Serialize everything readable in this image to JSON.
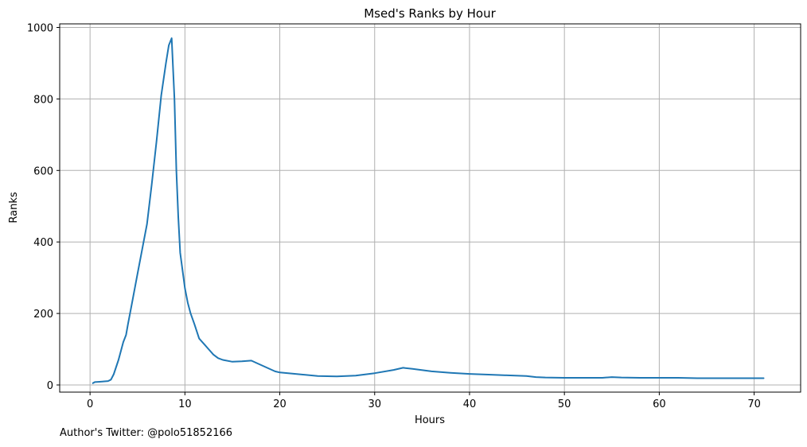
{
  "chart_data": {
    "type": "line",
    "title": "Msed's Ranks by Hour",
    "xlabel": "Hours",
    "ylabel": "Ranks",
    "xlim": [
      -3.2,
      74.9
    ],
    "ylim": [
      -20,
      1010
    ],
    "xticks": [
      0,
      10,
      20,
      30,
      40,
      50,
      60,
      70
    ],
    "yticks": [
      0,
      200,
      400,
      600,
      800,
      1000
    ],
    "grid": true,
    "color": "#1f77b4",
    "series": [
      {
        "x": [
          0.3,
          0.5,
          1.0,
          1.5,
          1.9,
          2.2,
          2.5,
          3.0,
          3.5,
          3.8,
          4.0,
          4.5,
          5.0,
          5.5,
          6.0,
          6.5,
          7.0,
          7.5,
          8.0,
          8.3,
          8.6,
          8.9,
          9.1,
          9.3,
          9.5,
          9.7,
          10.0,
          10.3,
          10.6,
          11.0,
          11.5,
          12.0,
          12.5,
          13.0,
          13.5,
          14.0,
          15.0,
          16.0,
          17.0,
          17.5,
          18.5,
          19.5,
          20.0,
          22.0,
          24.0,
          26.0,
          28.0,
          30.0,
          32.0,
          33.0,
          34.0,
          36.0,
          38.0,
          40.0,
          42.0,
          44.0,
          46.0,
          47.0,
          48.0,
          50.0,
          52.0,
          54.0,
          55.0,
          56.0,
          58.0,
          60.0,
          62.0,
          64.0,
          66.0,
          68.0,
          70.0,
          71.0
        ],
        "y": [
          5,
          8,
          9,
          10,
          11,
          15,
          30,
          70,
          120,
          140,
          170,
          240,
          310,
          380,
          450,
          560,
          680,
          810,
          900,
          950,
          970,
          800,
          600,
          470,
          370,
          330,
          270,
          230,
          200,
          170,
          130,
          115,
          100,
          85,
          75,
          70,
          65,
          66,
          68,
          62,
          50,
          38,
          35,
          30,
          25,
          24,
          26,
          33,
          42,
          48,
          45,
          38,
          34,
          31,
          29,
          27,
          25,
          22,
          21,
          20,
          20,
          20,
          22,
          21,
          20,
          20,
          20,
          19,
          19,
          19,
          19,
          19
        ]
      }
    ]
  },
  "footer": {
    "note": "Author's Twitter: @polo51852166"
  }
}
